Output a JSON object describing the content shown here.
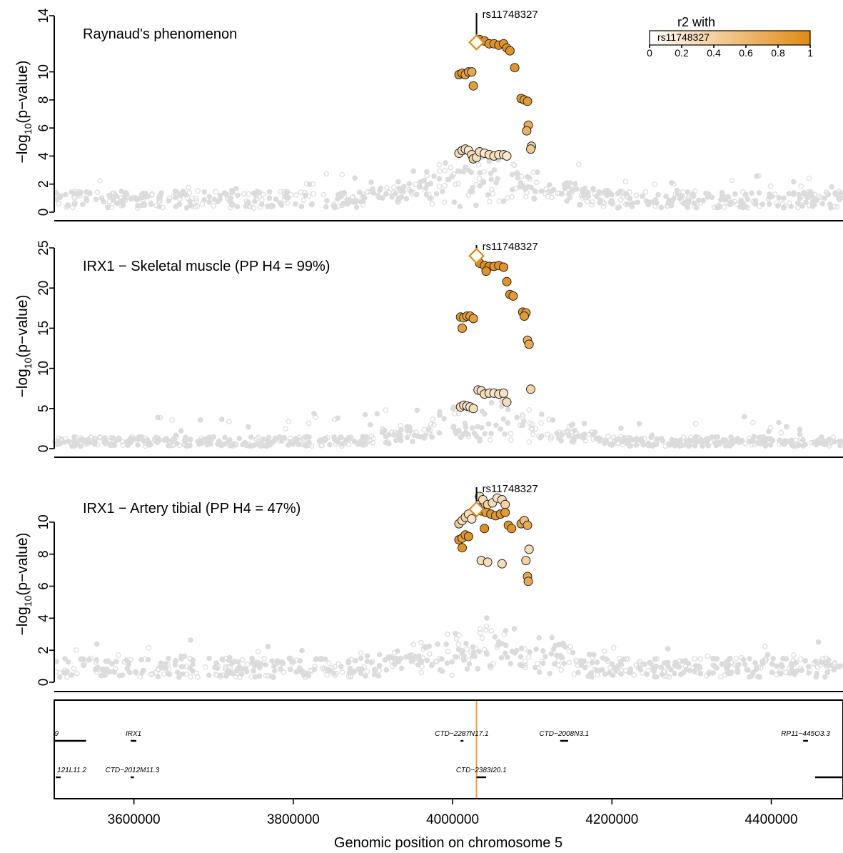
{
  "chart_data": {
    "type": "scatter",
    "xlabel": "Genomic position on chromosome 5",
    "x_ticks": [
      3600000,
      3800000,
      4000000,
      4200000,
      4400000
    ],
    "x_tick_labels": [
      "3600000",
      "3800000",
      "4000000",
      "4200000",
      "4400000"
    ],
    "xlim": [
      3500000,
      4490000
    ],
    "ylabel_prefix": "−log",
    "ylabel_sub": "10",
    "ylabel_suffix": "(p−value)",
    "lead_snp": {
      "id": "rs11748327",
      "position": 4030000
    },
    "legend": {
      "title": "r2 with",
      "snp": "rs11748327",
      "ticks": [
        0,
        0.2,
        0.4,
        0.6,
        0.8,
        1
      ],
      "tick_labels": [
        "0",
        "0.2",
        "0.4",
        "0.6",
        "0.8",
        "1"
      ],
      "color_low": "#fdf1e1",
      "color_high": "#e08a12"
    },
    "colors": {
      "background_points": "#dcdcdc",
      "lead_marker": "#e08a12",
      "gene_line": "#e0a040"
    },
    "panels": [
      {
        "title": "Raynaud's phenomenon",
        "ylim": [
          0,
          14
        ],
        "yticks": [
          0,
          2,
          4,
          6,
          8,
          10,
          14
        ],
        "ytick_labels": [
          "0",
          "2",
          "4",
          "6",
          "8",
          "10",
          "14"
        ],
        "lead_y": 12.1,
        "points": [
          [
            4008000,
            9.8,
            0.9
          ],
          [
            4012000,
            9.9,
            0.9
          ],
          [
            4016000,
            9.8,
            0.8
          ],
          [
            4020000,
            10.0,
            0.8
          ],
          [
            4024000,
            10.0,
            0.7
          ],
          [
            4026000,
            9.0,
            0.8
          ],
          [
            4034000,
            12.3,
            0.95
          ],
          [
            4040000,
            12.2,
            0.95
          ],
          [
            4046000,
            12.0,
            0.9
          ],
          [
            4052000,
            12.0,
            0.9
          ],
          [
            4058000,
            11.9,
            0.95
          ],
          [
            4064000,
            12.0,
            0.9
          ],
          [
            4068000,
            11.7,
            0.95
          ],
          [
            4072000,
            11.5,
            0.9
          ],
          [
            4078000,
            10.3,
            0.9
          ],
          [
            4086000,
            8.1,
            0.85
          ],
          [
            4090000,
            8.0,
            0.8
          ],
          [
            4094000,
            7.9,
            0.85
          ],
          [
            4095000,
            6.2,
            0.7
          ],
          [
            4093000,
            5.8,
            0.6
          ],
          [
            4099000,
            4.7,
            0.3
          ],
          [
            4098000,
            4.5,
            0.4
          ],
          [
            4008000,
            4.2,
            0.2
          ],
          [
            4012000,
            4.4,
            0.25
          ],
          [
            4016000,
            4.5,
            0.2
          ],
          [
            4020000,
            4.4,
            0.1
          ],
          [
            4024000,
            4.1,
            0.2
          ],
          [
            4026000,
            3.8,
            0.3
          ],
          [
            4030000,
            3.9,
            0.2
          ],
          [
            4034000,
            4.3,
            0.2
          ],
          [
            4040000,
            4.2,
            0.1
          ],
          [
            4046000,
            4.1,
            0.2
          ],
          [
            4052000,
            4.0,
            0.2
          ],
          [
            4058000,
            4.1,
            0.15
          ],
          [
            4064000,
            4.1,
            0.2
          ],
          [
            4068000,
            4.0,
            0.1
          ]
        ]
      },
      {
        "title": "IRX1 − Skeletal muscle (PP H4 = 99%)",
        "ylim": [
          0,
          25
        ],
        "yticks": [
          0,
          5,
          10,
          15,
          20,
          25
        ],
        "ytick_labels": [
          "0",
          "5",
          "10",
          "15",
          "20",
          "25"
        ],
        "lead_y": 24.0,
        "points": [
          [
            4034000,
            23.1,
            0.95
          ],
          [
            4040000,
            22.8,
            0.95
          ],
          [
            4046000,
            22.7,
            0.95
          ],
          [
            4052000,
            22.7,
            0.9
          ],
          [
            4058000,
            22.8,
            0.95
          ],
          [
            4064000,
            22.6,
            0.9
          ],
          [
            4042000,
            22.1,
            0.9
          ],
          [
            4068000,
            20.8,
            0.9
          ],
          [
            4072000,
            19.2,
            0.9
          ],
          [
            4076000,
            19.0,
            0.85
          ],
          [
            4088000,
            17.0,
            0.85
          ],
          [
            4092000,
            16.9,
            0.8
          ],
          [
            4090000,
            16.5,
            0.85
          ],
          [
            4094000,
            13.5,
            0.6
          ],
          [
            4096000,
            13.0,
            0.7
          ],
          [
            4010000,
            16.4,
            0.85
          ],
          [
            4014000,
            16.3,
            0.8
          ],
          [
            4018000,
            16.5,
            0.8
          ],
          [
            4022000,
            16.5,
            0.8
          ],
          [
            4026000,
            16.2,
            0.8
          ],
          [
            4012000,
            15.0,
            0.8
          ],
          [
            4010000,
            5.2,
            0.2
          ],
          [
            4014000,
            5.4,
            0.25
          ],
          [
            4018000,
            5.3,
            0.2
          ],
          [
            4022000,
            5.2,
            0.1
          ],
          [
            4026000,
            5.0,
            0.2
          ],
          [
            4032000,
            7.3,
            0.2
          ],
          [
            4036000,
            7.2,
            0.15
          ],
          [
            4040000,
            6.8,
            0.2
          ],
          [
            4046000,
            6.9,
            0.2
          ],
          [
            4052000,
            6.9,
            0.1
          ],
          [
            4058000,
            6.8,
            0.2
          ],
          [
            4064000,
            6.9,
            0.15
          ],
          [
            4068000,
            5.8,
            0.2
          ],
          [
            4098000,
            7.4,
            0.3
          ]
        ]
      },
      {
        "title": "IRX1 − Artery tibial (PP H4 = 47%)",
        "ylim": [
          0,
          12
        ],
        "yticks": [
          0,
          2,
          4,
          6,
          8,
          10
        ],
        "ytick_labels": [
          "0",
          "2",
          "4",
          "6",
          "8",
          "10"
        ],
        "lead_y": 10.8,
        "points": [
          [
            4008000,
            8.9,
            0.9
          ],
          [
            4012000,
            9.0,
            0.8
          ],
          [
            4016000,
            9.2,
            0.85
          ],
          [
            4020000,
            9.1,
            0.9
          ],
          [
            4012000,
            8.4,
            0.9
          ],
          [
            4008000,
            9.9,
            0.4
          ],
          [
            4012000,
            10.1,
            0.2
          ],
          [
            4016000,
            10.3,
            0.3
          ],
          [
            4020000,
            10.5,
            0.2
          ],
          [
            4024000,
            10.2,
            0.1
          ],
          [
            4034000,
            11.6,
            0.2
          ],
          [
            4038000,
            11.4,
            0.2
          ],
          [
            4044000,
            11.1,
            0.3
          ],
          [
            4050000,
            11.2,
            0.2
          ],
          [
            4056000,
            11.5,
            0.15
          ],
          [
            4062000,
            11.4,
            0.2
          ],
          [
            4066000,
            11.1,
            0.3
          ],
          [
            4032000,
            10.9,
            0.85
          ],
          [
            4036000,
            10.7,
            0.9
          ],
          [
            4042000,
            10.6,
            0.85
          ],
          [
            4048000,
            10.5,
            0.9
          ],
          [
            4054000,
            10.4,
            0.85
          ],
          [
            4060000,
            10.5,
            0.9
          ],
          [
            4066000,
            10.6,
            0.85
          ],
          [
            4040000,
            9.6,
            0.95
          ],
          [
            4070000,
            9.8,
            0.9
          ],
          [
            4074000,
            9.6,
            0.9
          ],
          [
            4086000,
            9.9,
            0.8
          ],
          [
            4090000,
            10.1,
            0.5
          ],
          [
            4094000,
            9.8,
            0.7
          ],
          [
            4092000,
            7.6,
            0.3
          ],
          [
            4096000,
            8.3,
            0.2
          ],
          [
            4094000,
            6.6,
            0.7
          ],
          [
            4095000,
            6.3,
            0.7
          ],
          [
            4036000,
            7.6,
            0.2
          ],
          [
            4044000,
            7.5,
            0.2
          ],
          [
            4062000,
            7.4,
            0.2
          ]
        ]
      }
    ],
    "genes": [
      {
        "name": "9",
        "start": 3500000,
        "end": 3540000,
        "row": 0
      },
      {
        "name": "IRX1",
        "start": 3596000,
        "end": 3603000,
        "row": 0
      },
      {
        "name": "CTD−2287N17.1",
        "start": 4010000,
        "end": 4013000,
        "row": 0
      },
      {
        "name": "CTD−2008N3.1",
        "start": 4135000,
        "end": 4145000,
        "row": 0
      },
      {
        "name": "RP11−445O3.3",
        "start": 4440000,
        "end": 4446000,
        "row": 0
      },
      {
        "name": "121L11.2",
        "start": 3502000,
        "end": 3508000,
        "row": 1
      },
      {
        "name": "CTD−2012M11.3",
        "start": 3596000,
        "end": 3600000,
        "row": 1
      },
      {
        "name": "CTD−2383I20.1",
        "start": 4030000,
        "end": 4042000,
        "row": 1
      },
      {
        "name": "",
        "start": 4455000,
        "end": 4495000,
        "row": 1
      }
    ]
  }
}
